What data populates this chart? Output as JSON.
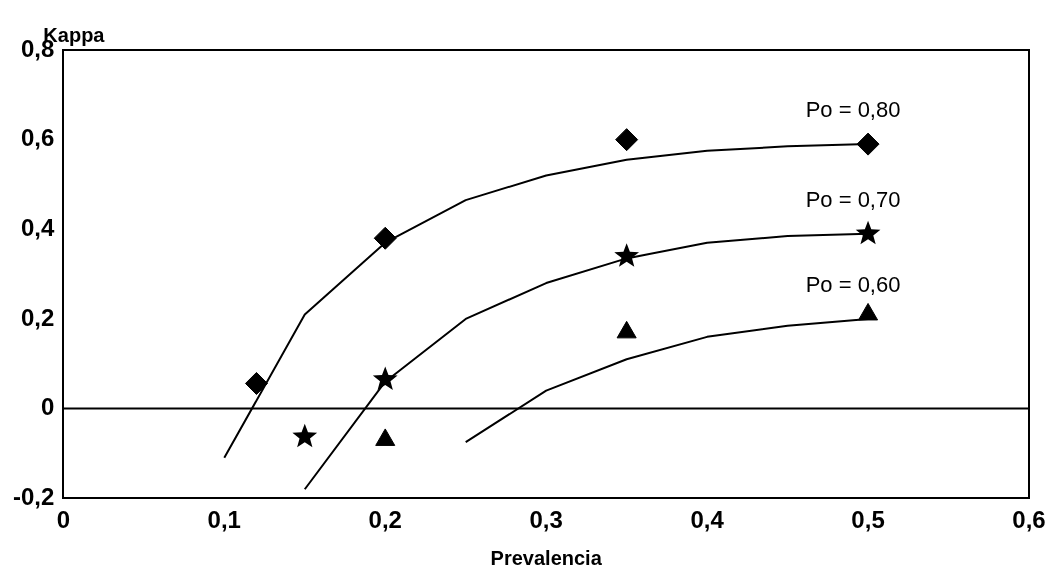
{
  "chart_data": {
    "type": "scatter",
    "xlabel": "Prevalencia",
    "ylabel": "Kappa",
    "xlim": [
      0,
      0.6
    ],
    "ylim": [
      -0.2,
      0.8
    ],
    "xticks": [
      0,
      {
        "value": 0.1,
        "label": "0,1"
      },
      {
        "value": 0.2,
        "label": "0,2"
      },
      {
        "value": 0.3,
        "label": "0,3"
      },
      {
        "value": 0.4,
        "label": "0,4"
      },
      {
        "value": 0.5,
        "label": "0,5"
      },
      {
        "value": 0.6,
        "label": "0,6"
      }
    ],
    "yticks": [
      {
        "value": -0.2,
        "label": "-0,2"
      },
      0,
      {
        "value": 0.2,
        "label": "0,2"
      },
      {
        "value": 0.4,
        "label": "0,4"
      },
      {
        "value": 0.6,
        "label": "0,6"
      },
      {
        "value": 0.8,
        "label": "0,8"
      }
    ],
    "grid": false,
    "legend": false,
    "annotations": [
      "Po = 0,80",
      "Po = 0,70",
      "Po = 0,60"
    ],
    "ref_lines": [
      {
        "axis": "y",
        "value": 0,
        "color": "#000000"
      }
    ],
    "series": [
      {
        "type": "line",
        "color": "#000000",
        "marker": "none",
        "x": [
          0.1,
          0.15,
          0.2,
          0.25,
          0.3,
          0.35,
          0.4,
          0.45,
          0.5
        ],
        "values": [
          -0.11,
          0.21,
          0.37,
          0.465,
          0.52,
          0.555,
          0.575,
          0.585,
          0.59
        ]
      },
      {
        "type": "line",
        "color": "#000000",
        "marker": "none",
        "x": [
          0.15,
          0.2,
          0.25,
          0.3,
          0.35,
          0.4,
          0.45,
          0.5
        ],
        "values": [
          -0.18,
          0.06,
          0.2,
          0.28,
          0.335,
          0.37,
          0.385,
          0.39
        ]
      },
      {
        "type": "line",
        "color": "#000000",
        "marker": "none",
        "x": [
          0.25,
          0.3,
          0.35,
          0.4,
          0.45,
          0.5
        ],
        "values": [
          -0.075,
          0.04,
          0.11,
          0.16,
          0.185,
          0.2
        ]
      },
      {
        "type": "scatter",
        "color": "#000000",
        "marker": "diamond",
        "x": [
          0.12,
          0.2,
          0.35,
          0.5
        ],
        "values": [
          0.056,
          0.38,
          0.6,
          0.59
        ]
      },
      {
        "type": "scatter",
        "color": "#000000",
        "marker": "star",
        "x": [
          0.15,
          0.2,
          0.35,
          0.5
        ],
        "values": [
          -0.063,
          0.065,
          0.34,
          0.39
        ]
      },
      {
        "type": "scatter",
        "color": "#000000",
        "marker": "triangle",
        "x": [
          0.2,
          0.35,
          0.5
        ],
        "values": [
          -0.07,
          0.17,
          0.21
        ]
      }
    ]
  }
}
